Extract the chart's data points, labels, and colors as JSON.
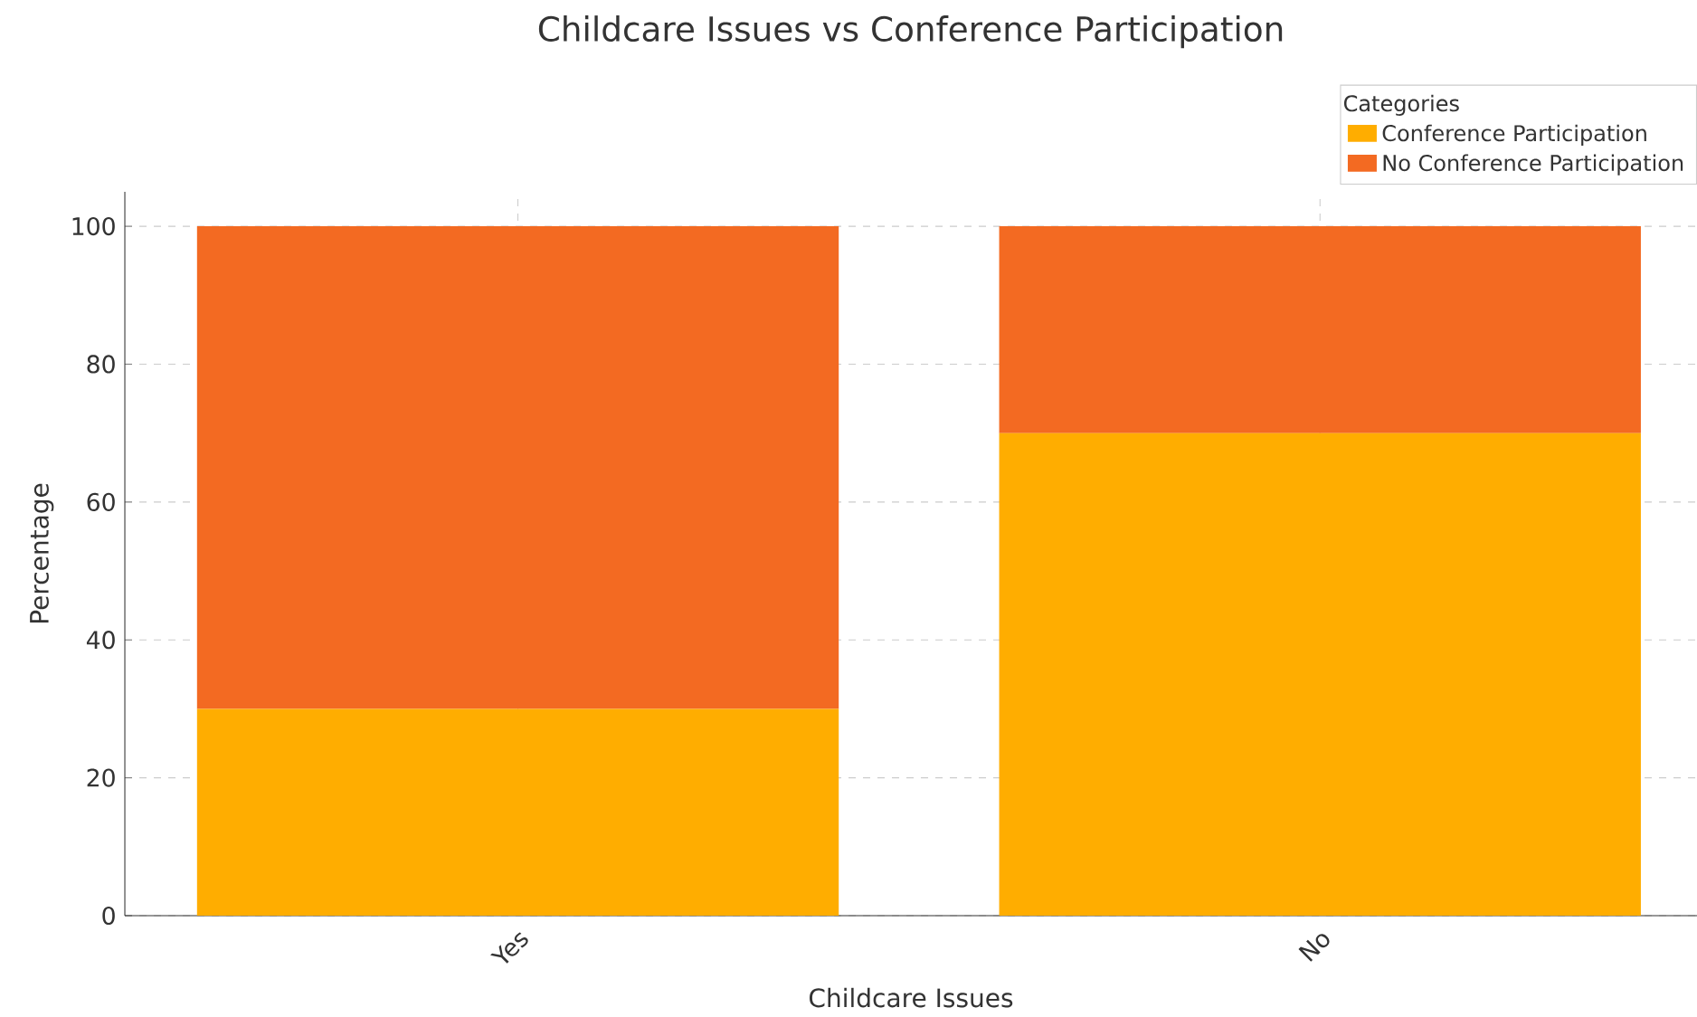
{
  "chart_data": {
    "type": "bar",
    "stacked": true,
    "title": "Childcare Issues vs Conference Participation",
    "xlabel": "Childcare Issues",
    "ylabel": "Percentage",
    "legend_title": "Categories",
    "categories": [
      "Yes",
      "No"
    ],
    "series": [
      {
        "name": "Conference Participation",
        "color": "#ffad00",
        "values": [
          30,
          70
        ]
      },
      {
        "name": "No Conference Participation",
        "color": "#f36a22",
        "values": [
          70,
          30
        ]
      }
    ],
    "ylim": [
      0,
      105
    ],
    "yticks": [
      0,
      20,
      40,
      60,
      80,
      100
    ],
    "grid": true,
    "legend": "top right"
  }
}
